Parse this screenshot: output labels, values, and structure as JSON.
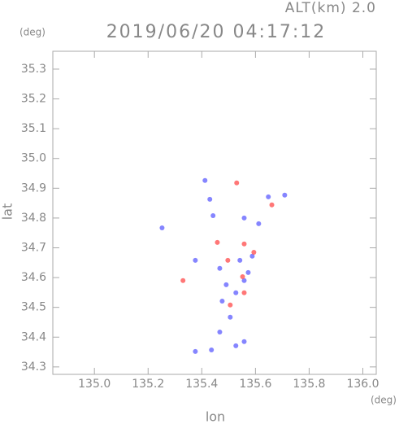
{
  "chart_data": {
    "type": "scatter",
    "title": "2019/06/20 04:17:12",
    "subtitle": "ALT(km) 2.0",
    "y_unit": "(deg)",
    "x_unit": "(deg)",
    "ylabel": "lat",
    "xlabel": "lon",
    "xlim": [
      134.845,
      136.05
    ],
    "ylim": [
      34.275,
      35.36
    ],
    "xticks": [
      {
        "value": 135.0,
        "label": "135.0"
      },
      135.2,
      135.4,
      135.6,
      135.8,
      {
        "value": 136.0,
        "label": "136.0"
      }
    ],
    "yticks": [
      34.3,
      34.4,
      34.5,
      34.6,
      34.7,
      34.8,
      34.9,
      {
        "value": 35.0,
        "label": "35.0"
      },
      35.1,
      35.2,
      35.3
    ],
    "series": [
      {
        "color": "#6666ff",
        "x": [
          135.412,
          135.43,
          135.442,
          135.252,
          135.558,
          135.648,
          135.709,
          135.612,
          135.376,
          135.467,
          135.542,
          135.588,
          135.491,
          135.558,
          135.476,
          135.506,
          135.467,
          135.376,
          135.436,
          135.527,
          135.558,
          135.527,
          135.573
        ],
        "values": [
          34.926,
          34.863,
          34.808,
          34.767,
          34.8,
          34.871,
          34.877,
          34.781,
          34.658,
          34.631,
          34.658,
          34.672,
          34.576,
          34.59,
          34.521,
          34.467,
          34.417,
          34.352,
          34.357,
          34.371,
          34.385,
          34.549,
          34.617
        ]
      },
      {
        "color": "#ff5555",
        "x": [
          135.53,
          135.458,
          135.558,
          135.594,
          135.552,
          135.506,
          135.33,
          135.661,
          135.558,
          135.497
        ],
        "values": [
          34.918,
          34.718,
          34.713,
          34.685,
          34.603,
          34.508,
          34.59,
          34.844,
          34.549,
          34.658
        ]
      }
    ]
  }
}
